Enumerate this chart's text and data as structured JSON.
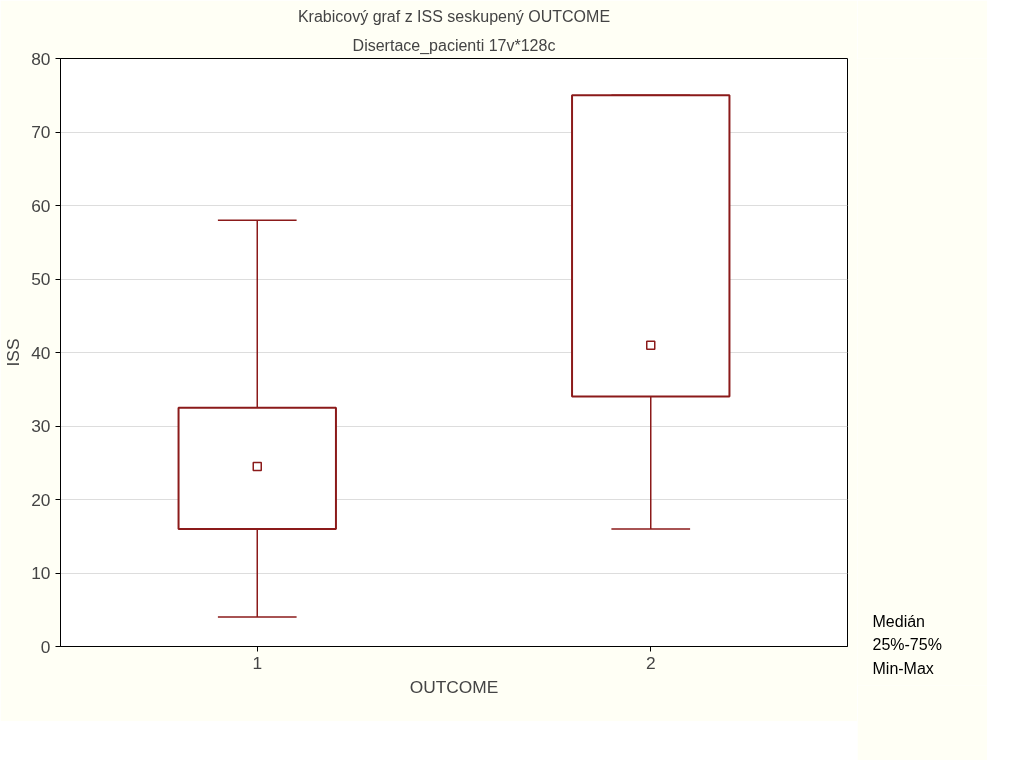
{
  "chart_data": {
    "type": "box",
    "title": "Krabicový graf z ISS seskupený OUTCOME",
    "subtitle": "Disertace_pacienti 17v*128c",
    "xlabel": "OUTCOME",
    "ylabel": "ISS",
    "categories": [
      "1",
      "2"
    ],
    "series": [
      {
        "color": "#8b1a1a",
        "boxes": [
          {
            "low": 4,
            "q1": 16,
            "median": 24.5,
            "q3": 32.5,
            "high": 58
          },
          {
            "low": 16,
            "q1": 34,
            "median": 41,
            "q3": 75,
            "high": 75
          }
        ]
      }
    ],
    "ylim": [
      0,
      80
    ],
    "yticks": [
      0,
      10,
      20,
      30,
      40,
      50,
      60,
      70,
      80
    ],
    "grid": "y",
    "marker": "square",
    "annotations": [
      "Medián",
      "25%-75%",
      "Min-Max"
    ]
  }
}
